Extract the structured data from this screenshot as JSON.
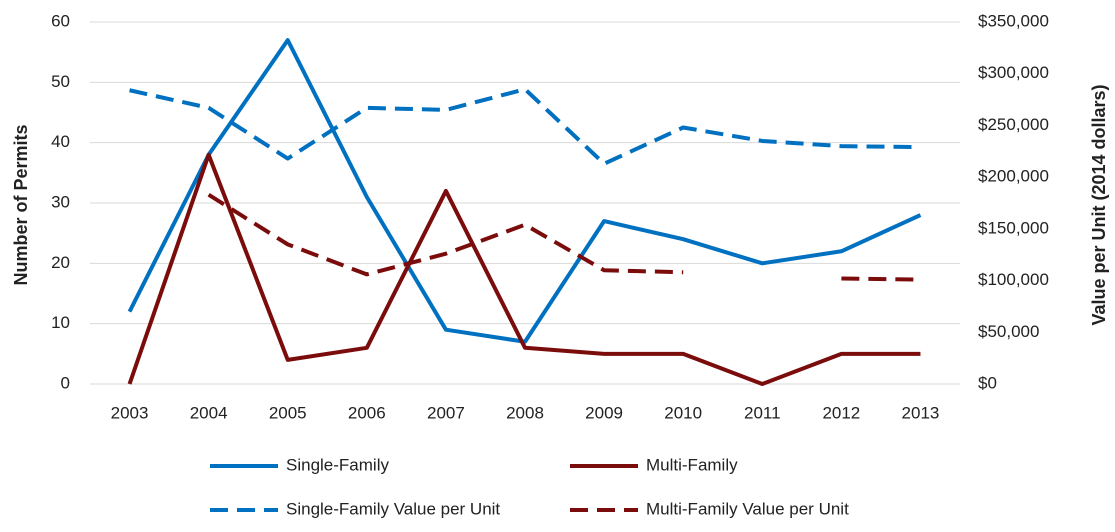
{
  "chart_data": {
    "type": "line",
    "categories": [
      "2003",
      "2004",
      "2005",
      "2006",
      "2007",
      "2008",
      "2009",
      "2010",
      "2011",
      "2012",
      "2013"
    ],
    "y_label": "Number of Permits",
    "y2_label": "Value per Unit (2014 dollars)",
    "ylim": [
      0,
      60
    ],
    "yticks": [
      0,
      10,
      20,
      30,
      40,
      50,
      60
    ],
    "y2lim": [
      0,
      350000
    ],
    "y2ticks": [
      {
        "value": 0,
        "label": "$0"
      },
      {
        "value": 50000,
        "label": "$50,000"
      },
      {
        "value": 100000,
        "label": "$100,000"
      },
      {
        "value": 150000,
        "label": "$150,000"
      },
      {
        "value": 200000,
        "label": "$200,000"
      },
      {
        "value": 250000,
        "label": "$250,000"
      },
      {
        "value": 300000,
        "label": "$300,000"
      },
      {
        "value": 350000,
        "label": "$350,000"
      }
    ],
    "grid": true,
    "series": [
      {
        "name": "Single-Family",
        "color": "#0070c0",
        "dashed": false,
        "values": [
          12,
          38,
          57,
          31,
          9,
          7,
          27,
          24,
          20,
          22,
          28
        ]
      },
      {
        "name": "Multi-Family",
        "color": "#7b0c0c",
        "dashed": false,
        "values": [
          0,
          38,
          4,
          6,
          32,
          6,
          5,
          5,
          0,
          5,
          5
        ]
      },
      {
        "name": "Single-Family Value per Unit",
        "color": "#0070c0",
        "dashed": true,
        "axis": "y2",
        "values": [
          284000,
          267000,
          218000,
          267000,
          265000,
          285000,
          213000,
          248000,
          235000,
          230000,
          229000
        ]
      },
      {
        "name": "Multi-Family Value per Unit",
        "color": "#7b0c0c",
        "dashed": true,
        "axis": "y2",
        "values": [
          null,
          183000,
          135000,
          106000,
          126000,
          154000,
          110000,
          108000,
          null,
          102000,
          101000
        ]
      }
    ]
  }
}
